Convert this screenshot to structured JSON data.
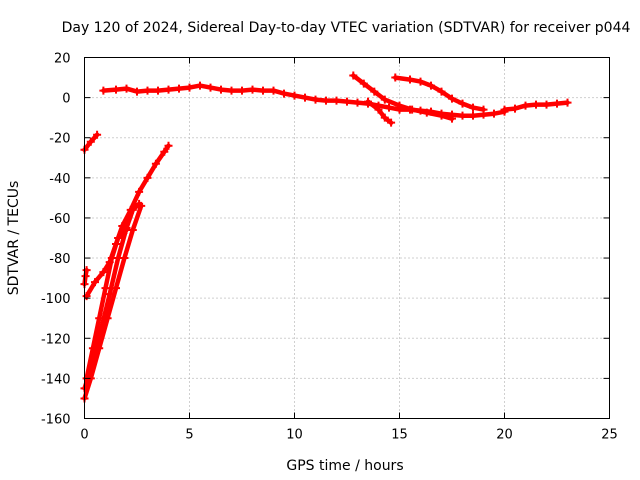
{
  "chart_data": {
    "type": "scatter",
    "title": "Day 120 of 2024, Sidereal Day-to-day VTEC variation (SDTVAR) for receiver p044",
    "xlabel": "GPS time / hours",
    "ylabel": "SDTVAR / TECUs",
    "xlim": [
      0,
      25
    ],
    "ylim": [
      -160,
      20
    ],
    "xticks": [
      0,
      5,
      10,
      15,
      20,
      25
    ],
    "yticks": [
      -160,
      -140,
      -120,
      -100,
      -80,
      -60,
      -40,
      -20,
      0,
      20
    ],
    "grid": true,
    "marker": "+",
    "color": "#ff0000",
    "series": [
      {
        "name": "main-band",
        "points": [
          [
            0.9,
            3.5
          ],
          [
            1.5,
            4
          ],
          [
            2,
            4.5
          ],
          [
            2.5,
            3
          ],
          [
            3,
            3.5
          ],
          [
            3.5,
            3.5
          ],
          [
            4,
            4
          ],
          [
            4.5,
            4.5
          ],
          [
            5,
            5
          ],
          [
            5.5,
            6
          ],
          [
            6,
            5
          ],
          [
            6.5,
            4
          ],
          [
            7,
            3.5
          ],
          [
            7.5,
            3.5
          ],
          [
            8,
            4
          ],
          [
            8.5,
            3.5
          ],
          [
            9,
            3.5
          ],
          [
            9.5,
            2
          ],
          [
            10,
            1
          ],
          [
            10.5,
            0
          ],
          [
            11,
            -1
          ],
          [
            11.5,
            -1.5
          ],
          [
            12,
            -1.5
          ],
          [
            12.5,
            -2
          ],
          [
            13,
            -2.5
          ],
          [
            13.5,
            -3
          ],
          [
            14,
            -4
          ],
          [
            14.5,
            -5
          ],
          [
            15,
            -6
          ],
          [
            15.5,
            -6
          ],
          [
            16,
            -6.5
          ],
          [
            16.5,
            -7
          ],
          [
            17,
            -8
          ],
          [
            17.5,
            -8.5
          ],
          [
            18,
            -9
          ],
          [
            18.5,
            -9
          ],
          [
            19,
            -8.5
          ],
          [
            19.5,
            -8
          ],
          [
            20,
            -7
          ]
        ]
      },
      {
        "name": "late-band",
        "points": [
          [
            20,
            -6
          ],
          [
            20.5,
            -5.5
          ],
          [
            21,
            -4
          ],
          [
            21.5,
            -3.5
          ],
          [
            22,
            -3.5
          ],
          [
            22.5,
            -3
          ],
          [
            23,
            -2.5
          ]
        ]
      },
      {
        "name": "descending-track-a",
        "points": [
          [
            12.8,
            11
          ],
          [
            13.3,
            7
          ],
          [
            13.8,
            3
          ],
          [
            14.3,
            -1
          ],
          [
            15,
            -4
          ],
          [
            15.6,
            -6
          ],
          [
            16.3,
            -7.5
          ],
          [
            17,
            -9
          ],
          [
            17.5,
            -10.5
          ]
        ]
      },
      {
        "name": "descending-track-b",
        "points": [
          [
            14.8,
            10
          ],
          [
            15.5,
            9
          ],
          [
            16,
            8
          ],
          [
            16.5,
            6
          ],
          [
            17,
            3
          ],
          [
            17.5,
            -0.5
          ],
          [
            18,
            -3
          ],
          [
            18.5,
            -5
          ],
          [
            19,
            -6
          ]
        ]
      },
      {
        "name": "descending-track-c",
        "points": [
          [
            13.5,
            -2
          ],
          [
            14,
            -6
          ],
          [
            14.3,
            -10
          ],
          [
            14.6,
            -12.5
          ]
        ]
      },
      {
        "name": "short-rise",
        "points": [
          [
            0,
            -26
          ],
          [
            0.3,
            -22
          ],
          [
            0.6,
            -18.5
          ]
        ]
      },
      {
        "name": "early-rise-main",
        "points": [
          [
            0.1,
            -99
          ],
          [
            0.5,
            -92
          ],
          [
            0.9,
            -87
          ],
          [
            1.2,
            -82
          ],
          [
            1.5,
            -73
          ],
          [
            1.8,
            -64
          ],
          [
            2.2,
            -56
          ],
          [
            2.6,
            -47
          ],
          [
            3,
            -40
          ],
          [
            3.4,
            -33
          ],
          [
            3.8,
            -27
          ],
          [
            4,
            -24
          ]
        ]
      },
      {
        "name": "early-rise-steep",
        "points": [
          [
            0,
            -145
          ],
          [
            0.4,
            -132
          ],
          [
            0.8,
            -115
          ],
          [
            1.2,
            -98
          ],
          [
            1.6,
            -80
          ],
          [
            2,
            -65
          ],
          [
            2.3,
            -56
          ],
          [
            2.6,
            -53
          ]
        ]
      },
      {
        "name": "early-rise-low",
        "points": [
          [
            0,
            -150
          ],
          [
            0.3,
            -140
          ],
          [
            0.7,
            -125
          ],
          [
            1.1,
            -110
          ],
          [
            1.5,
            -95
          ],
          [
            1.9,
            -80
          ],
          [
            2.3,
            -66
          ],
          [
            2.7,
            -54
          ]
        ]
      },
      {
        "name": "early-rise-offshoot",
        "points": [
          [
            0.1,
            -140
          ],
          [
            0.4,
            -125
          ],
          [
            0.7,
            -110
          ],
          [
            1,
            -95
          ],
          [
            1.3,
            -80
          ],
          [
            1.6,
            -70
          ],
          [
            2,
            -66
          ]
        ]
      },
      {
        "name": "early-stub",
        "points": [
          [
            0,
            -93
          ],
          [
            0.05,
            -89
          ],
          [
            0.1,
            -86
          ]
        ]
      }
    ]
  }
}
